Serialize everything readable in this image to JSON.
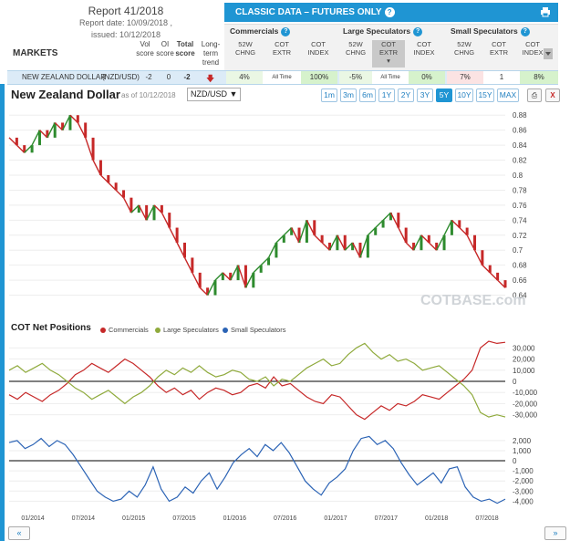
{
  "report": {
    "title": "Report 41/2018",
    "date": "Report date: 10/09/2018 ,",
    "issued": "issued: 10/12/2018"
  },
  "markets_label": "MARKETS",
  "col_headers": {
    "vol": "Vol score",
    "oi": "OI score",
    "total": "Total score",
    "trend": "Long-term trend"
  },
  "classic": {
    "title": "CLASSIC DATA – FUTURES ONLY"
  },
  "groups": [
    {
      "name": "Commercials",
      "cols": [
        "52W CHNG",
        "COT EXTR",
        "COT INDEX"
      ]
    },
    {
      "name": "Large Speculators",
      "cols": [
        "52W CHNG",
        "COT EXTR",
        "COT INDEX"
      ]
    },
    {
      "name": "Small Speculators",
      "cols": [
        "52W CHNG",
        "COT EXTR",
        "COT INDEX"
      ]
    }
  ],
  "market_row": {
    "name": "NEW ZEALAND DOLLAR",
    "symbol": "(NZD/USD)",
    "vol": "-2",
    "oi": "0",
    "total": "-2",
    "values": [
      "4%",
      "All Time",
      "100%",
      "-5%",
      "All Time",
      "0%",
      "7%",
      "1",
      "8%"
    ]
  },
  "chart_header": {
    "title": "New Zealand Dollar",
    "as_of": "as of 10/12/2018",
    "pair": "NZD/USD ▼"
  },
  "timeframes": [
    "1m",
    "3m",
    "6m",
    "1Y",
    "2Y",
    "3Y",
    "5Y",
    "10Y",
    "15Y",
    "MAX"
  ],
  "active_timeframe": "5Y",
  "close_label": "X",
  "watermark": "COTBASE.com",
  "cot_section": {
    "title": "COT Net Positions",
    "legend": [
      "Commercials",
      "Large Speculators",
      "Small Speculators"
    ]
  },
  "colors": {
    "accent": "#1f95d3",
    "commercials": "#c62828",
    "large_spec": "#8faa3c",
    "small_spec": "#2b63b5",
    "up": "#2e8b2e",
    "down": "#c62828"
  },
  "nav": {
    "prev": "«",
    "next": "»"
  },
  "chart_data": [
    {
      "type": "line",
      "title": "New Zealand Dollar",
      "ylim": [
        0.62,
        0.89
      ],
      "y_ticks": [
        "0.88",
        "0.86",
        "0.84",
        "0.82",
        "0.8",
        "0.78",
        "0.76",
        "0.74",
        "0.72",
        "0.7",
        "0.68",
        "0.66",
        "0.64"
      ],
      "series": [
        {
          "name": "NZD/USD",
          "values": [
            0.85,
            0.84,
            0.83,
            0.84,
            0.86,
            0.85,
            0.87,
            0.86,
            0.88,
            0.87,
            0.85,
            0.82,
            0.8,
            0.79,
            0.78,
            0.77,
            0.75,
            0.76,
            0.74,
            0.76,
            0.75,
            0.73,
            0.71,
            0.69,
            0.67,
            0.65,
            0.64,
            0.66,
            0.67,
            0.66,
            0.68,
            0.65,
            0.67,
            0.68,
            0.69,
            0.71,
            0.72,
            0.73,
            0.71,
            0.74,
            0.72,
            0.71,
            0.7,
            0.72,
            0.7,
            0.71,
            0.69,
            0.72,
            0.73,
            0.74,
            0.75,
            0.73,
            0.71,
            0.7,
            0.72,
            0.71,
            0.7,
            0.72,
            0.74,
            0.73,
            0.72,
            0.7,
            0.68,
            0.67,
            0.66,
            0.65
          ]
        }
      ]
    },
    {
      "type": "line",
      "title": "COT Net Positions",
      "ylim": [
        -36000,
        36000
      ],
      "y_ticks": [
        "30,000",
        "20,000",
        "10,000",
        "0",
        "-10,000",
        "-20,000",
        "-30,000"
      ],
      "series": [
        {
          "name": "Commercials",
          "values": [
            -12000,
            -16000,
            -10000,
            -14000,
            -18000,
            -12000,
            -8000,
            -2000,
            6000,
            10000,
            16000,
            12000,
            8000,
            14000,
            20000,
            16000,
            10000,
            4000,
            -4000,
            -10000,
            -6000,
            -12000,
            -8000,
            -16000,
            -10000,
            -6000,
            -8000,
            -12000,
            -10000,
            -4000,
            -2000,
            -6000,
            4000,
            -4000,
            -2000,
            -8000,
            -14000,
            -18000,
            -20000,
            -12000,
            -14000,
            -22000,
            -30000,
            -34000,
            -28000,
            -22000,
            -26000,
            -20000,
            -22000,
            -18000,
            -12000,
            -14000,
            -16000,
            -10000,
            -4000,
            2000,
            10000,
            30000,
            36000,
            34000,
            35000
          ]
        },
        {
          "name": "Large Speculators",
          "values": [
            10000,
            14000,
            8000,
            12000,
            16000,
            10000,
            6000,
            0,
            -6000,
            -10000,
            -16000,
            -12000,
            -8000,
            -14000,
            -20000,
            -14000,
            -10000,
            -4000,
            4000,
            10000,
            6000,
            12000,
            8000,
            14000,
            8000,
            4000,
            6000,
            10000,
            8000,
            2000,
            0,
            4000,
            -4000,
            2000,
            0,
            6000,
            12000,
            16000,
            20000,
            14000,
            16000,
            24000,
            30000,
            34000,
            26000,
            20000,
            24000,
            18000,
            20000,
            16000,
            10000,
            12000,
            14000,
            8000,
            2000,
            -4000,
            -12000,
            -28000,
            -32000,
            -30000,
            -32000
          ]
        },
        {
          "name": "Small Speculators",
          "values": []
        }
      ]
    },
    {
      "type": "line",
      "title": "Small Speculators",
      "ylim": [
        -4600,
        2800
      ],
      "y_ticks": [
        "2,000",
        "1,000",
        "0",
        "-1,000",
        "-2,000",
        "-3,000",
        "-4,000"
      ],
      "x_ticks": [
        "01/2014",
        "07/2014",
        "01/2015",
        "07/2015",
        "01/2016",
        "07/2016",
        "01/2017",
        "07/2017",
        "01/2018",
        "07/2018"
      ],
      "series": [
        {
          "name": "Small Speculators",
          "values": [
            1800,
            2000,
            1200,
            1600,
            2200,
            1400,
            2000,
            1600,
            600,
            -600,
            -1800,
            -3000,
            -3600,
            -4000,
            -3800,
            -3000,
            -3600,
            -2400,
            -600,
            -2800,
            -4000,
            -3600,
            -2600,
            -3200,
            -2000,
            -1200,
            -2800,
            -1600,
            -200,
            600,
            1200,
            400,
            1600,
            1000,
            1800,
            800,
            -600,
            -2000,
            -2800,
            -3400,
            -2200,
            -1600,
            -800,
            1000,
            2200,
            2400,
            1600,
            2000,
            1200,
            -200,
            -1400,
            -2400,
            -1800,
            -1200,
            -2200,
            -800,
            -600,
            -2600,
            -3600,
            -4000,
            -3800,
            -4200,
            -3800
          ]
        }
      ]
    }
  ]
}
